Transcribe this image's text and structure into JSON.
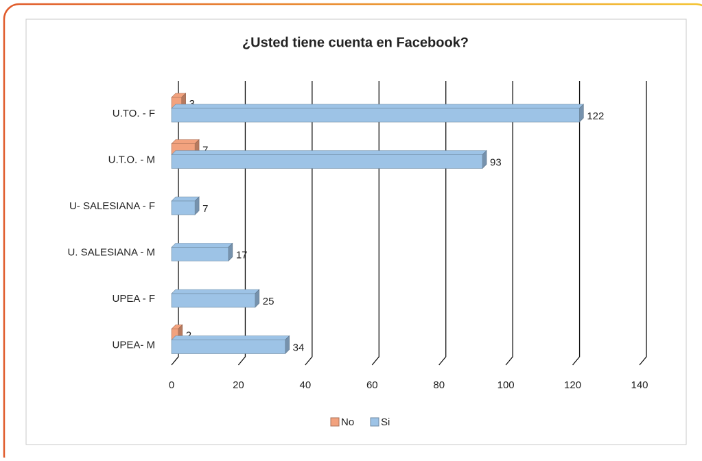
{
  "chart_data": {
    "type": "bar",
    "orientation": "horizontal",
    "title": "¿Usted tiene cuenta en Facebook?",
    "categories": [
      "U.TO. - F",
      "U.T.O. - M",
      "U- SALESIANA - F",
      "U. SALESIANA - M",
      "UPEA - F",
      "UPEA- M"
    ],
    "series": [
      {
        "name": "No",
        "color": "#f2a27e",
        "values": [
          3,
          7,
          null,
          null,
          null,
          2
        ]
      },
      {
        "name": "Si",
        "color": "#9dc3e6",
        "values": [
          122,
          93,
          7,
          17,
          25,
          34
        ]
      }
    ],
    "xlim": [
      0,
      140
    ],
    "xticks": [
      0,
      20,
      40,
      60,
      80,
      100,
      120,
      140
    ],
    "grid": true,
    "legend": "bottom"
  }
}
